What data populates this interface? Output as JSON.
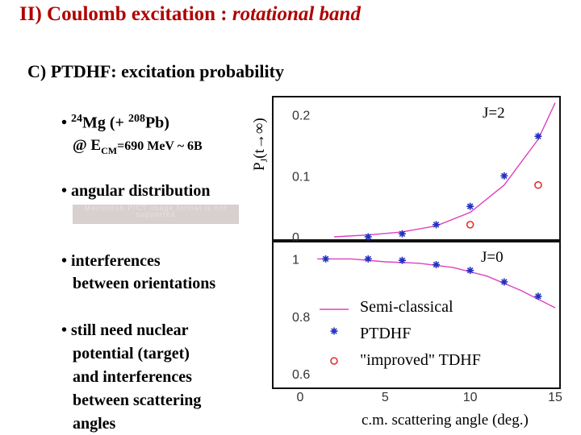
{
  "title": {
    "main": "II) Coulomb excitation : ",
    "italic": "rotational band"
  },
  "section": "C)  PTDHF: excitation probability",
  "bullets": {
    "b1": {
      "prefix": "• ",
      "mass1": "24",
      "el1": "Mg (+ ",
      "mass2": "208",
      "el2": "Pb)"
    },
    "b1_line2": {
      "pre": "@ E",
      "sub": "CM",
      "post": "=690 MeV ~ 6B"
    },
    "b2": "• angular distribution",
    "pict_text": "Macintosh PICT image format is not supported",
    "b3_line1": "• interferences",
    "b3_line2": "between orientations",
    "b4_lines": [
      "• still need nuclear",
      "potential (target)",
      "and interferences",
      "between scattering",
      "angles"
    ]
  },
  "chart_data": [
    {
      "type": "scatter",
      "panel": "top",
      "label": "J=2",
      "ylabel": "PJ(t→∞)",
      "yticks": [
        "0",
        "0.1",
        "0.2"
      ],
      "ylim": [
        0,
        0.23
      ],
      "xlim": [
        0,
        15
      ],
      "series": [
        {
          "name": "Semi-classical",
          "kind": "line",
          "color": "#e040c0",
          "x": [
            2,
            4,
            6,
            8,
            10,
            12,
            14,
            15
          ],
          "y": [
            0.0,
            0.003,
            0.008,
            0.018,
            0.04,
            0.085,
            0.16,
            0.22
          ]
        },
        {
          "name": "PTDHF",
          "kind": "star",
          "color": "#2030c0",
          "x": [
            4,
            6,
            8,
            10,
            12,
            14
          ],
          "y": [
            0.0,
            0.005,
            0.02,
            0.05,
            0.1,
            0.165
          ]
        },
        {
          "name": "\"improved\" TDHF",
          "kind": "circle",
          "color": "#e03030",
          "x": [
            10,
            14
          ],
          "y": [
            0.02,
            0.085
          ]
        }
      ]
    },
    {
      "type": "scatter",
      "panel": "bottom",
      "label": "J=0",
      "yticks": [
        "0.6",
        "0.8",
        "1"
      ],
      "ylim": [
        0.55,
        1.06
      ],
      "xticks": [
        "0",
        "5",
        "10",
        "15"
      ],
      "xlim": [
        0,
        15
      ],
      "xlabel": "c.m. scattering angle (deg.)",
      "series": [
        {
          "name": "Semi-classical",
          "kind": "line",
          "color": "#e040c0",
          "x": [
            1,
            3,
            5,
            7,
            9,
            11,
            13,
            15
          ],
          "y": [
            1.0,
            1.0,
            0.99,
            0.985,
            0.97,
            0.94,
            0.89,
            0.83
          ]
        },
        {
          "name": "PTDHF",
          "kind": "star",
          "color": "#2030c0",
          "x": [
            1.5,
            4,
            6,
            8,
            10,
            12,
            14
          ],
          "y": [
            1.0,
            1.0,
            0.995,
            0.98,
            0.96,
            0.92,
            0.87
          ]
        }
      ]
    }
  ],
  "legend": [
    {
      "label": "Semi-classical",
      "kind": "line",
      "color": "#e040c0"
    },
    {
      "label": "PTDHF",
      "kind": "star",
      "color": "#2030c0"
    },
    {
      "label": "\"improved\" TDHF",
      "kind": "circle",
      "color": "#e03030"
    }
  ]
}
